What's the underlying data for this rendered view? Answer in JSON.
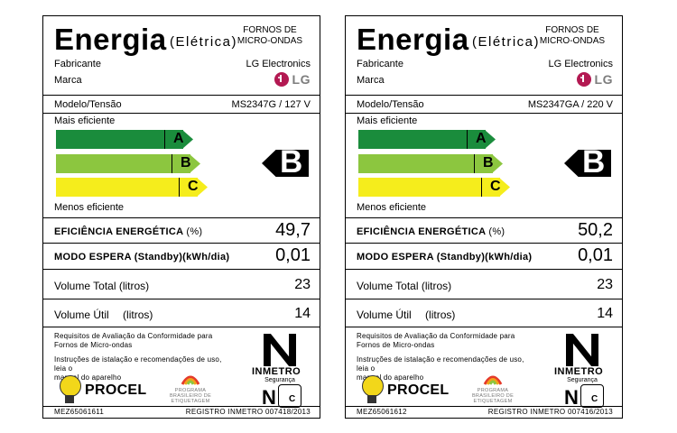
{
  "labels": [
    {
      "title": "Energia",
      "subtitle": "(Elétrica)",
      "product_type_line1": "FORNOS DE",
      "product_type_line2": "MICRO-ONDAS",
      "manufacturer_label": "Fabricante",
      "manufacturer_value": "LG Electronics",
      "brand_label": "Marca",
      "brand_value": "LG",
      "model_label": "Modelo/Tensão",
      "model_value": "MS2347G / 127 V",
      "more_efficient": "Mais eficiente",
      "less_efficient": "Menos eficiente",
      "classes": [
        "A",
        "B",
        "C"
      ],
      "rating": "B",
      "efficiency_label": "EFICIÊNCIA ENERGÉTICA",
      "efficiency_unit": "(%)",
      "efficiency_value": "49,7",
      "standby_label": "MODO ESPERA (Standby)(kWh/dia)",
      "standby_value": "0,01",
      "volume_total_label": "Volume Total (litros)",
      "volume_total_value": "23",
      "volume_util_label": "Volume Útil",
      "volume_util_unit": "(litros)",
      "volume_util_value": "14",
      "req_line1": "Requisitos de Avaliação da Conformidade para",
      "req_line2": "Fornos de Micro-ondas",
      "instr_line1": "Instruções de istalação e recomendações de uso, leia o",
      "instr_line2": "manual do aparelho",
      "inmetro": "INMETRO",
      "seguranca": "Segurança",
      "procel": "PROCEL",
      "programa_line1": "PROGRAMA",
      "programa_line2": "BRASILEIRO DE",
      "programa_line3": "ETIQUETAGEM",
      "ncert_n": "N",
      "ncert_c": "C",
      "code": "MEZ65061611",
      "registro": "REGISTRO INMETRO 007418/2013"
    },
    {
      "title": "Energia",
      "subtitle": "(Elétrica)",
      "product_type_line1": "FORNOS DE",
      "product_type_line2": "MICRO-ONDAS",
      "manufacturer_label": "Fabricante",
      "manufacturer_value": "LG Electronics",
      "brand_label": "Marca",
      "brand_value": "LG",
      "model_label": "Modelo/Tensão",
      "model_value": "MS2347GA / 220 V",
      "more_efficient": "Mais eficiente",
      "less_efficient": "Menos eficiente",
      "classes": [
        "A",
        "B",
        "C"
      ],
      "rating": "B",
      "efficiency_label": "EFICIÊNCIA ENERGÉTICA",
      "efficiency_unit": "(%)",
      "efficiency_value": "50,2",
      "standby_label": "MODO ESPERA (Standby)(kWh/dia)",
      "standby_value": "0,01",
      "volume_total_label": "Volume Total (litros)",
      "volume_total_value": "23",
      "volume_util_label": "Volume Útil",
      "volume_util_unit": "(litros)",
      "volume_util_value": "14",
      "req_line1": "Requisitos de Avaliação da Conformidade para",
      "req_line2": "Fornos de Micro-ondas",
      "instr_line1": "Instruções de istalação e recomendações de uso, leia o",
      "instr_line2": "manual do aparelho",
      "inmetro": "INMETRO",
      "seguranca": "Segurança",
      "procel": "PROCEL",
      "programa_line1": "PROGRAMA",
      "programa_line2": "BRASILEIRO DE",
      "programa_line3": "ETIQUETAGEM",
      "ncert_n": "N",
      "ncert_c": "C",
      "code": "MEZ65061612",
      "registro": "REGISTRO INMETRO 007416/2013"
    }
  ],
  "colors": {
    "class_a": "#1a8c3c",
    "class_b": "#8cc63f",
    "class_c": "#f5ed1c",
    "lg_brand": "#b31952"
  }
}
